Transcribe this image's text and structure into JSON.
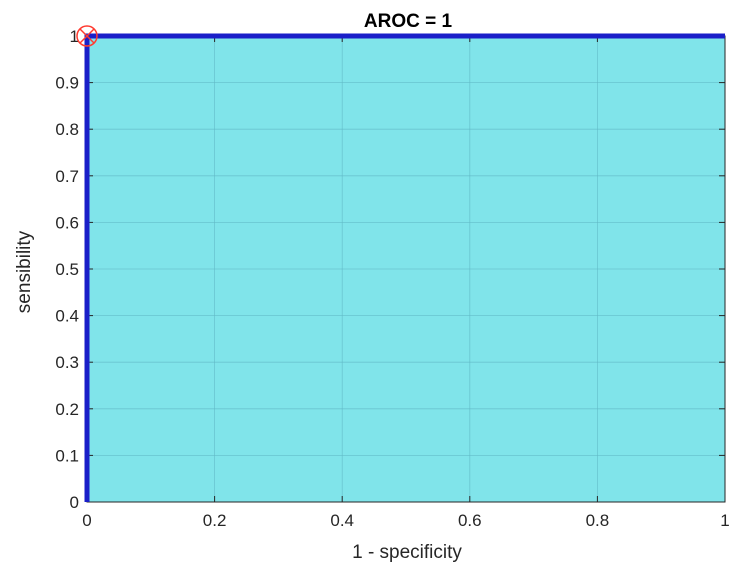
{
  "chart_data": {
    "type": "area",
    "title": "AROC = 1",
    "xlabel": "1 - specificity",
    "ylabel": "sensibility",
    "xlim": [
      0,
      1
    ],
    "ylim": [
      0,
      1
    ],
    "x_ticks": [
      0,
      0.2,
      0.4,
      0.6,
      0.8,
      1
    ],
    "x_tick_labels": [
      "0",
      "0.2",
      "0.4",
      "0.6",
      "0.8",
      "1"
    ],
    "y_ticks": [
      0,
      0.1,
      0.2,
      0.3,
      0.4,
      0.5,
      0.6,
      0.7,
      0.8,
      0.9,
      1
    ],
    "y_tick_labels": [
      "0",
      "0.1",
      "0.2",
      "0.3",
      "0.4",
      "0.5",
      "0.6",
      "0.7",
      "0.8",
      "0.9",
      "1"
    ],
    "grid": true,
    "series": [
      {
        "x": [
          0,
          0,
          1
        ],
        "y": [
          0,
          1,
          1
        ],
        "color": "#1a1fc8",
        "fill_color": "#80e4ea"
      }
    ],
    "marker_point": {
      "x": 0,
      "y": 1,
      "color": "#ff3b30"
    }
  }
}
